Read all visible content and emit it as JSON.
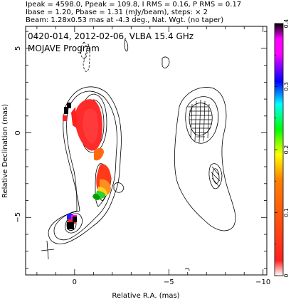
{
  "header": {
    "line1": "Ipeak = 4598.0, Ppeak = 109.8, I RMS = 0.16, P RMS = 0.17",
    "line2": "Ibase = 1.20, Pbase = 1.31 (mJy/beam), steps: × 2",
    "line3": "Beam: 1.28x0.53 mas at -4.3 deg., Nat. Wgt. (no taper)"
  },
  "annotation": {
    "title": "0420-014, 2012-02-06, VLBA 15.4 GHz",
    "subtitle": "MOJAVE Program"
  },
  "chart_data": {
    "type": "contour",
    "xlabel": "Relative R.A. (mas)",
    "ylabel": "Relative Declination (mas)",
    "xlim": [
      2.6,
      -10.2
    ],
    "ylim": [
      -8.4,
      6.3
    ],
    "x_ticks": [
      0,
      -5,
      -10
    ],
    "x_tick_labels": [
      "0",
      "−5",
      "−10"
    ],
    "y_ticks": [
      5,
      0,
      -5
    ],
    "y_tick_labels": [
      "5",
      "0",
      "−5"
    ],
    "colorbar": {
      "min": 0,
      "max": 0.4,
      "ticks": [
        0,
        0.1,
        0.2,
        0.3,
        0.4
      ],
      "tick_labels": [
        "0",
        "0.1",
        "0.2",
        "0.3",
        "0.4"
      ],
      "colors": [
        "#ffffff",
        "#ff2020",
        "#ff8000",
        "#ffff00",
        "#00ff00",
        "#00ffff",
        "#0000ff",
        "#ff00ff",
        "#000000"
      ]
    },
    "peaks": {
      "ipeak": 4598.0,
      "ppeak": 109.8,
      "i_rms": 0.16,
      "p_rms": 0.17,
      "ibase": 1.2,
      "pbase": 1.31,
      "step_factor": 2
    },
    "beam": {
      "major_mas": 1.28,
      "minor_mas": 0.53,
      "pa_deg": -4.3
    },
    "panels": [
      "total-intensity-with-fractional-polarization",
      "linear-polarization-vectors"
    ]
  }
}
